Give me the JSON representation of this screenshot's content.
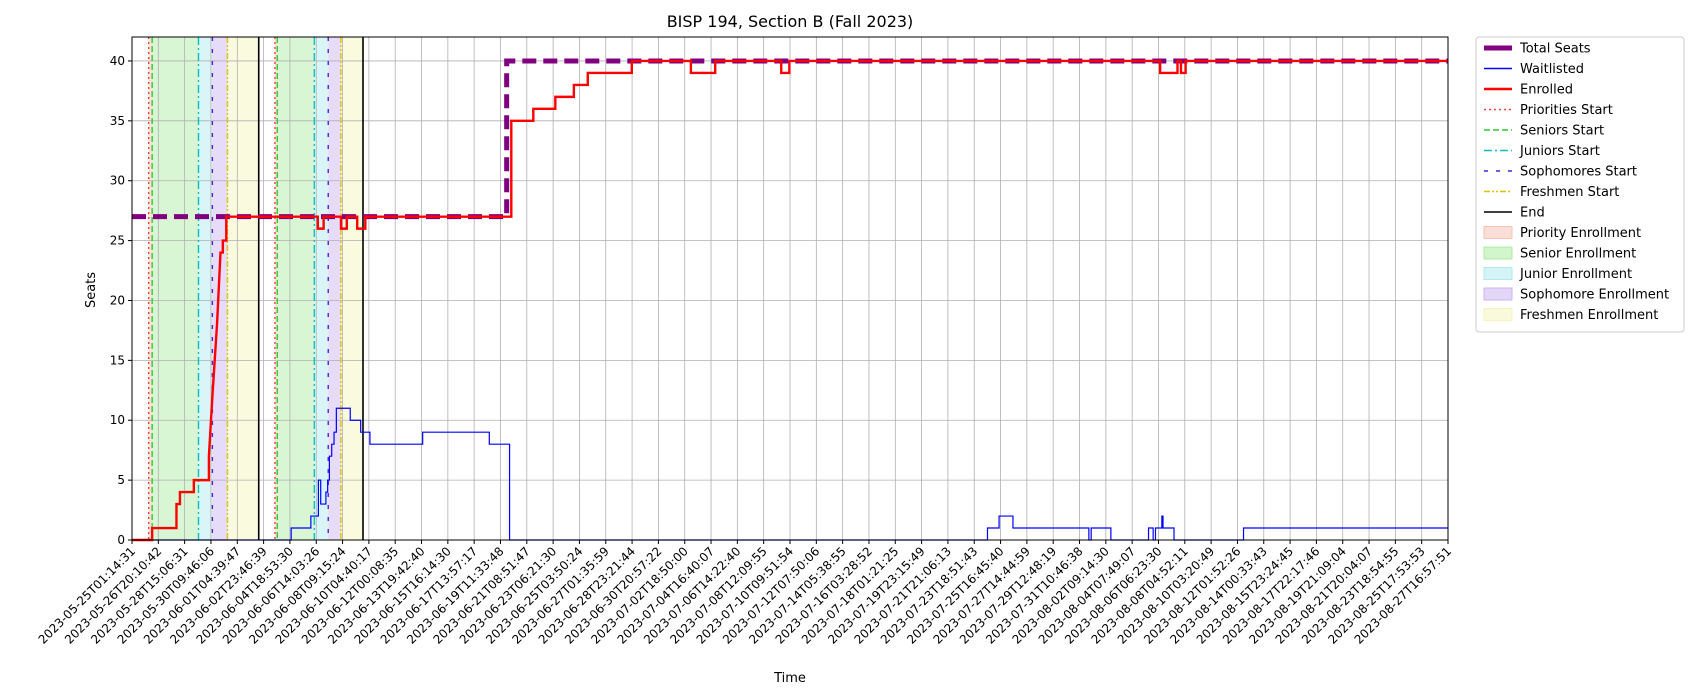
{
  "chart_data": {
    "type": "line",
    "title": "BISP 194, Section B (Fall 2023)",
    "xlabel": "Time",
    "ylabel": "Seats",
    "ylim": [
      0,
      42
    ],
    "yticks": [
      0,
      5,
      10,
      15,
      20,
      25,
      30,
      35,
      40
    ],
    "grid": true,
    "legend_position": "outside-right",
    "xlim": [
      "2023-05-25T01:14:31",
      "2023-08-27T16:57:51"
    ],
    "xtick_labels": [
      "2023-05-25T01:14:31",
      "2023-05-26T20:10:42",
      "2023-05-28T15:06:31",
      "2023-05-30T09:46:06",
      "2023-06-01T04:39:47",
      "2023-06-02T23:46:39",
      "2023-06-04T18:53:30",
      "2023-06-06T14:03:26",
      "2023-06-08T09:15:24",
      "2023-06-10T04:40:17",
      "2023-06-12T00:08:35",
      "2023-06-13T19:42:40",
      "2023-06-15T16:14:30",
      "2023-06-17T13:57:17",
      "2023-06-19T11:33:48",
      "2023-06-21T08:51:47",
      "2023-06-23T06:21:30",
      "2023-06-25T03:50:24",
      "2023-06-27T01:35:59",
      "2023-06-28T23:21:44",
      "2023-06-30T20:57:22",
      "2023-07-02T18:50:00",
      "2023-07-04T16:40:07",
      "2023-07-06T14:22:40",
      "2023-07-08T12:09:55",
      "2023-07-10T09:51:54",
      "2023-07-12T07:50:06",
      "2023-07-14T05:38:55",
      "2023-07-16T03:28:52",
      "2023-07-18T01:21:25",
      "2023-07-19T23:15:49",
      "2023-07-21T21:06:13",
      "2023-07-23T18:51:43",
      "2023-07-25T16:45:40",
      "2023-07-27T14:44:59",
      "2023-07-29T12:48:19",
      "2023-07-31T10:46:38",
      "2023-08-02T09:14:30",
      "2023-08-04T07:49:07",
      "2023-08-06T06:23:30",
      "2023-08-08T04:52:11",
      "2023-08-10T03:20:49",
      "2023-08-12T01:52:26",
      "2023-08-14T00:33:43",
      "2023-08-15T23:24:45",
      "2023-08-17T22:17:46",
      "2023-08-19T21:09:04",
      "2023-08-21T20:04:07",
      "2023-08-23T18:54:55",
      "2023-08-25T17:53:53",
      "2023-08-27T16:57:51"
    ],
    "series": [
      {
        "name": "Total Seats",
        "color": "#800080",
        "style": "dashed-thick",
        "points": [
          [
            "2023-05-25T01:14:31",
            27
          ],
          [
            "2023-06-21T00:00:00",
            27
          ],
          [
            "2023-06-21T00:00:00",
            40
          ],
          [
            "2023-08-27T16:57:51",
            40
          ]
        ]
      },
      {
        "name": "Waitlisted",
        "color": "#0000ff",
        "style": "solid",
        "points": [
          [
            "2023-05-25T01:14:31",
            0
          ],
          [
            "2023-06-05T12:00:00",
            0
          ],
          [
            "2023-06-05T12:00:00",
            1
          ],
          [
            "2023-06-06T22:00:00",
            1
          ],
          [
            "2023-06-06T22:00:00",
            2
          ],
          [
            "2023-06-07T11:00:00",
            2
          ],
          [
            "2023-06-07T11:00:00",
            5
          ],
          [
            "2023-06-07T15:00:00",
            5
          ],
          [
            "2023-06-07T15:00:00",
            3
          ],
          [
            "2023-06-08T00:00:00",
            3
          ],
          [
            "2023-06-08T00:00:00",
            4
          ],
          [
            "2023-06-08T03:00:00",
            4
          ],
          [
            "2023-06-08T03:00:00",
            5
          ],
          [
            "2023-06-08T06:00:00",
            5
          ],
          [
            "2023-06-08T06:00:00",
            7
          ],
          [
            "2023-06-08T10:00:00",
            7
          ],
          [
            "2023-06-08T10:00:00",
            8
          ],
          [
            "2023-06-08T14:00:00",
            8
          ],
          [
            "2023-06-08T14:00:00",
            9
          ],
          [
            "2023-06-08T18:00:00",
            9
          ],
          [
            "2023-06-08T18:00:00",
            11
          ],
          [
            "2023-06-09T18:00:00",
            11
          ],
          [
            "2023-06-09T18:00:00",
            10
          ],
          [
            "2023-06-10T12:00:00",
            10
          ],
          [
            "2023-06-10T12:00:00",
            9
          ],
          [
            "2023-06-11T04:00:00",
            9
          ],
          [
            "2023-06-11T04:00:00",
            8
          ],
          [
            "2023-06-14T23:00:00",
            8
          ],
          [
            "2023-06-14T23:00:00",
            9
          ],
          [
            "2023-06-19T18:00:00",
            9
          ],
          [
            "2023-06-19T18:00:00",
            8
          ],
          [
            "2023-06-21T05:00:00",
            8
          ],
          [
            "2023-06-21T05:00:00",
            0
          ],
          [
            "2023-07-25T14:00:00",
            0
          ],
          [
            "2023-07-25T14:00:00",
            1
          ],
          [
            "2023-07-26T10:00:00",
            1
          ],
          [
            "2023-07-26T10:00:00",
            2
          ],
          [
            "2023-07-27T10:00:00",
            2
          ],
          [
            "2023-07-27T10:00:00",
            1
          ],
          [
            "2023-08-01T21:00:00",
            1
          ],
          [
            "2023-08-01T21:00:00",
            0
          ],
          [
            "2023-08-02T01:00:00",
            0
          ],
          [
            "2023-08-02T01:00:00",
            1
          ],
          [
            "2023-08-03T11:00:00",
            1
          ],
          [
            "2023-08-03T11:00:00",
            0
          ],
          [
            "2023-08-06T04:00:00",
            0
          ],
          [
            "2023-08-06T04:00:00",
            1
          ],
          [
            "2023-08-06T12:00:00",
            1
          ],
          [
            "2023-08-06T12:00:00",
            0
          ],
          [
            "2023-08-06T16:00:00",
            0
          ],
          [
            "2023-08-06T16:00:00",
            1
          ],
          [
            "2023-08-07T03:00:00",
            1
          ],
          [
            "2023-08-07T03:00:00",
            2
          ],
          [
            "2023-08-07T05:00:00",
            2
          ],
          [
            "2023-08-07T05:00:00",
            1
          ],
          [
            "2023-08-08T00:00:00",
            1
          ],
          [
            "2023-08-08T00:00:00",
            0
          ],
          [
            "2023-08-13T00:00:00",
            0
          ],
          [
            "2023-08-13T00:00:00",
            1
          ],
          [
            "2023-08-27T16:57:51",
            1
          ]
        ]
      },
      {
        "name": "Enrolled",
        "color": "#ff0000",
        "style": "solid-thick",
        "points": [
          [
            "2023-05-25T01:14:31",
            0
          ],
          [
            "2023-05-26T12:00:00",
            0
          ],
          [
            "2023-05-26T12:00:00",
            1
          ],
          [
            "2023-05-28T06:00:00",
            1
          ],
          [
            "2023-05-28T06:00:00",
            3
          ],
          [
            "2023-05-28T12:00:00",
            3
          ],
          [
            "2023-05-28T12:00:00",
            4
          ],
          [
            "2023-05-29T12:00:00",
            4
          ],
          [
            "2023-05-29T12:00:00",
            5
          ],
          [
            "2023-05-30T14:00:00",
            5
          ],
          [
            "2023-05-30T14:00:00",
            7
          ],
          [
            "2023-05-30T20:00:00",
            12
          ],
          [
            "2023-05-31T04:00:00",
            18
          ],
          [
            "2023-05-31T08:00:00",
            22
          ],
          [
            "2023-05-31T10:00:00",
            24
          ],
          [
            "2023-05-31T14:00:00",
            24
          ],
          [
            "2023-05-31T14:00:00",
            25
          ],
          [
            "2023-05-31T20:00:00",
            25
          ],
          [
            "2023-05-31T20:00:00",
            27
          ],
          [
            "2023-06-07T10:00:00",
            27
          ],
          [
            "2023-06-07T10:00:00",
            26
          ],
          [
            "2023-06-07T20:00:00",
            26
          ],
          [
            "2023-06-07T20:00:00",
            27
          ],
          [
            "2023-06-08T12:00:00",
            27
          ],
          [
            "2023-06-08T12:00:00",
            27
          ],
          [
            "2023-06-09T02:00:00",
            27
          ],
          [
            "2023-06-09T02:00:00",
            26
          ],
          [
            "2023-06-09T12:00:00",
            26
          ],
          [
            "2023-06-09T12:00:00",
            27
          ],
          [
            "2023-06-10T06:00:00",
            27
          ],
          [
            "2023-06-10T06:00:00",
            26
          ],
          [
            "2023-06-10T20:00:00",
            26
          ],
          [
            "2023-06-10T20:00:00",
            27
          ],
          [
            "2023-06-21T08:00:00",
            27
          ],
          [
            "2023-06-21T08:00:00",
            35
          ],
          [
            "2023-06-22T22:00:00",
            35
          ],
          [
            "2023-06-22T22:00:00",
            36
          ],
          [
            "2023-06-24T12:00:00",
            36
          ],
          [
            "2023-06-24T12:00:00",
            37
          ],
          [
            "2023-06-25T20:00:00",
            37
          ],
          [
            "2023-06-25T20:00:00",
            38
          ],
          [
            "2023-06-26T20:00:00",
            38
          ],
          [
            "2023-06-26T20:00:00",
            39
          ],
          [
            "2023-06-30T00:00:00",
            39
          ],
          [
            "2023-06-30T00:00:00",
            40
          ],
          [
            "2023-07-04T06:00:00",
            40
          ],
          [
            "2023-07-04T06:00:00",
            39
          ],
          [
            "2023-07-06T00:00:00",
            39
          ],
          [
            "2023-07-06T00:00:00",
            40
          ],
          [
            "2023-07-10T18:00:00",
            40
          ],
          [
            "2023-07-10T18:00:00",
            39
          ],
          [
            "2023-07-11T08:00:00",
            39
          ],
          [
            "2023-07-11T08:00:00",
            40
          ],
          [
            "2023-08-07T00:00:00",
            40
          ],
          [
            "2023-08-07T00:00:00",
            39
          ],
          [
            "2023-08-08T06:00:00",
            39
          ],
          [
            "2023-08-08T06:00:00",
            40
          ],
          [
            "2023-08-08T12:00:00",
            40
          ],
          [
            "2023-08-08T12:00:00",
            39
          ],
          [
            "2023-08-08T20:00:00",
            39
          ],
          [
            "2023-08-08T20:00:00",
            40
          ],
          [
            "2023-08-27T16:57:51",
            40
          ]
        ]
      }
    ],
    "vertical_markers": [
      {
        "name": "Priorities Start",
        "color": "#ff3b3b",
        "style": "dotted",
        "dates": [
          "2023-05-26T06:00:00",
          "2023-06-04T08:00:00"
        ]
      },
      {
        "name": "Seniors Start",
        "color": "#2ecc2e",
        "style": "dashed",
        "dates": [
          "2023-05-26T12:00:00",
          "2023-06-04T12:00:00"
        ]
      },
      {
        "name": "Juniors Start",
        "color": "#00bfbf",
        "style": "dashdot",
        "dates": [
          "2023-05-29T20:00:00",
          "2023-06-07T04:00:00"
        ]
      },
      {
        "name": "Sophomores Start",
        "color": "#5a1fd6",
        "style": "loosedash",
        "dates": [
          "2023-05-30T20:00:00",
          "2023-06-08T04:00:00"
        ]
      },
      {
        "name": "Freshmen Start",
        "color": "#e0c000",
        "style": "dashdotdot",
        "dates": [
          "2023-05-31T22:00:00",
          "2023-06-09T02:00:00"
        ]
      },
      {
        "name": "End",
        "color": "#000000",
        "style": "solid",
        "dates": [
          "2023-06-03T04:00:00",
          "2023-06-10T16:00:00"
        ]
      }
    ],
    "shaded_periods": [
      {
        "name": "Priority Enrollment",
        "color": "#f4b8a8",
        "ranges": [
          [
            "2023-05-26T06:00:00",
            "2023-05-26T12:00:00"
          ],
          [
            "2023-06-04T08:00:00",
            "2023-06-04T12:00:00"
          ]
        ]
      },
      {
        "name": "Senior Enrollment",
        "color": "#9ee892",
        "ranges": [
          [
            "2023-05-26T12:00:00",
            "2023-05-29T20:00:00"
          ],
          [
            "2023-06-04T12:00:00",
            "2023-06-07T04:00:00"
          ]
        ]
      },
      {
        "name": "Junior Enrollment",
        "color": "#9fe6ee",
        "ranges": [
          [
            "2023-05-29T20:00:00",
            "2023-05-30T20:00:00"
          ],
          [
            "2023-06-07T04:00:00",
            "2023-06-08T04:00:00"
          ]
        ]
      },
      {
        "name": "Sophomore Enrollment",
        "color": "#c0a7f0",
        "ranges": [
          [
            "2023-05-30T20:00:00",
            "2023-05-31T22:00:00"
          ],
          [
            "2023-06-08T04:00:00",
            "2023-06-09T02:00:00"
          ]
        ]
      },
      {
        "name": "Freshmen Enrollment",
        "color": "#f2f2b0",
        "ranges": [
          [
            "2023-05-31T22:00:00",
            "2023-06-03T04:00:00"
          ],
          [
            "2023-06-09T02:00:00",
            "2023-06-10T16:00:00"
          ]
        ]
      }
    ]
  }
}
